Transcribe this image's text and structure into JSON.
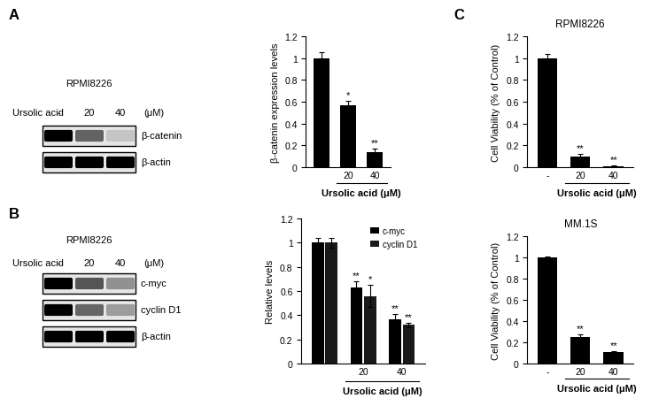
{
  "panel_labels": [
    "A",
    "B",
    "C"
  ],
  "blots": [
    {
      "cell_line": "RPMI8226",
      "treatment_label": "Ursolic acid",
      "lanes": [
        "-",
        "20",
        "40"
      ],
      "unit": "(μM)",
      "bands": [
        "β-catenin",
        "β-actin"
      ]
    },
    {
      "cell_line": "RPMI8226",
      "treatment_label": "Ursolic acid",
      "lanes": [
        "-",
        "20",
        "40"
      ],
      "unit": "(μM)",
      "bands": [
        "c-myc",
        "cyclin D1",
        "β-actin"
      ]
    }
  ],
  "chart_data": [
    {
      "type": "bar",
      "ylabel": "β-catenin expression levels",
      "xlabel": "Ursolic acid (μM)",
      "categories": [
        null,
        "20",
        "40"
      ],
      "values": [
        1.0,
        0.57,
        0.14
      ],
      "errors": [
        0.05,
        0.04,
        0.03
      ],
      "annotations": [
        null,
        "*",
        "**"
      ],
      "color": "#000000",
      "ylim": [
        0,
        1.2
      ],
      "yticks": [
        0,
        0.2,
        0.4,
        0.6,
        0.8,
        1,
        1.2
      ]
    },
    {
      "type": "bar",
      "ylabel": "Relative levels",
      "xlabel": "Ursolic acid (μM)",
      "categories": [
        null,
        "20",
        "40"
      ],
      "legend": "upper right",
      "series": [
        {
          "name": "c-myc",
          "color": "#000000",
          "values": [
            1.0,
            0.63,
            0.37
          ],
          "errors": [
            0.04,
            0.05,
            0.04
          ],
          "annotations": [
            null,
            "**",
            "**"
          ]
        },
        {
          "name": "cyclin D1",
          "color": "#1a1a1a",
          "values": [
            1.0,
            0.56,
            0.32
          ],
          "errors": [
            0.04,
            0.09,
            0.02
          ],
          "annotations": [
            null,
            "*",
            "**"
          ]
        }
      ],
      "ylim": [
        0,
        1.2
      ],
      "yticks": [
        0,
        0.2,
        0.4,
        0.6,
        0.8,
        1,
        1.2
      ]
    },
    {
      "type": "bar",
      "title": "RPMI8226",
      "ylabel": "Cell Viability (% of Control)",
      "xlabel": "Ursolic acid (μM)",
      "categories": [
        "-",
        "20",
        "40"
      ],
      "values": [
        1.0,
        0.1,
        0.01
      ],
      "errors": [
        0.04,
        0.02,
        0.005
      ],
      "annotations": [
        null,
        "**",
        "**"
      ],
      "color": "#000000",
      "ylim": [
        0,
        1.2
      ],
      "yticks": [
        0,
        0.2,
        0.4,
        0.6,
        0.8,
        1,
        1.2
      ]
    },
    {
      "type": "bar",
      "title": "MM.1S",
      "ylabel": "Cell Viability (% of Control)",
      "xlabel": "Ursolic acid (μM)",
      "categories": [
        "-",
        "20",
        "40"
      ],
      "values": [
        1.0,
        0.25,
        0.11
      ],
      "errors": [
        0.01,
        0.03,
        0.01
      ],
      "annotations": [
        null,
        "**",
        "**"
      ],
      "color": "#000000",
      "ylim": [
        0,
        1.2
      ],
      "yticks": [
        0,
        0.2,
        0.4,
        0.6,
        0.8,
        1,
        1.2
      ]
    }
  ]
}
